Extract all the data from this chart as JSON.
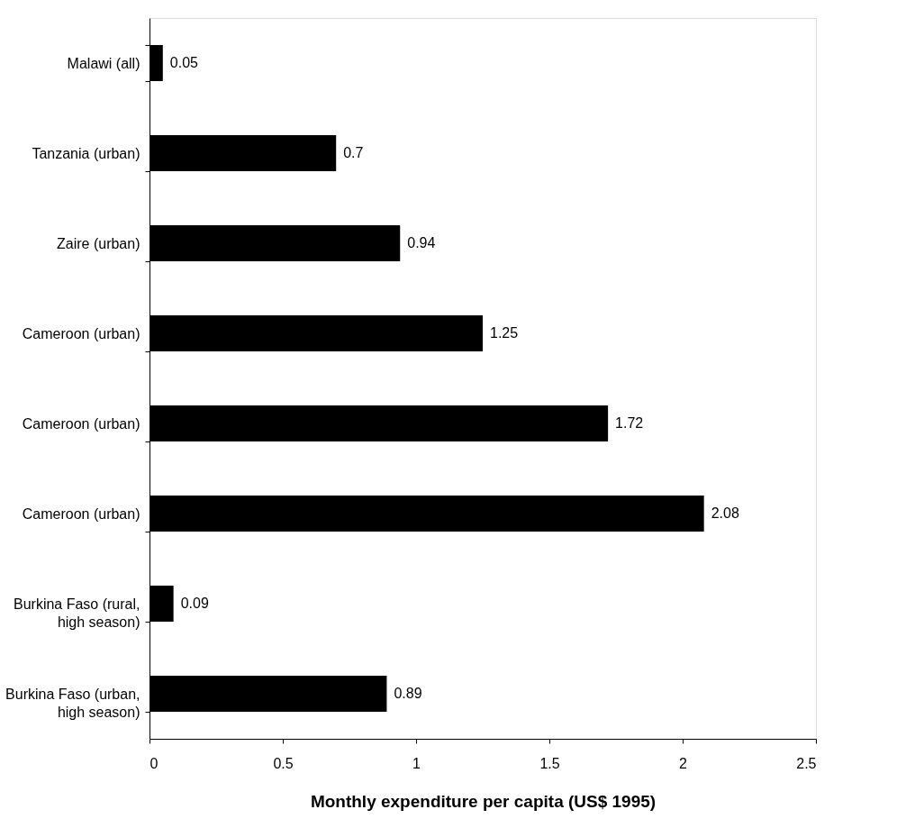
{
  "chart_data": {
    "type": "bar",
    "orientation": "horizontal",
    "xlabel": "Monthly expenditure per capita (US$ 1995)",
    "categories": [
      "Malawi (all)",
      "Tanzania (urban)",
      "Zaire (urban)",
      "Cameroon (urban)",
      "Cameroon (urban)",
      "Cameroon (urban)",
      "Burkina Faso (rural,\nhigh season)",
      "Burkina Faso (urban,\nhigh season)"
    ],
    "values": [
      0.05,
      0.7,
      0.94,
      1.25,
      1.72,
      2.08,
      0.09,
      0.89
    ],
    "color": "#000000",
    "xlim": [
      0,
      2.5
    ],
    "xticks": [
      0,
      0.5,
      1,
      1.5,
      2,
      2.5
    ],
    "data_labels": true,
    "grid": false
  }
}
